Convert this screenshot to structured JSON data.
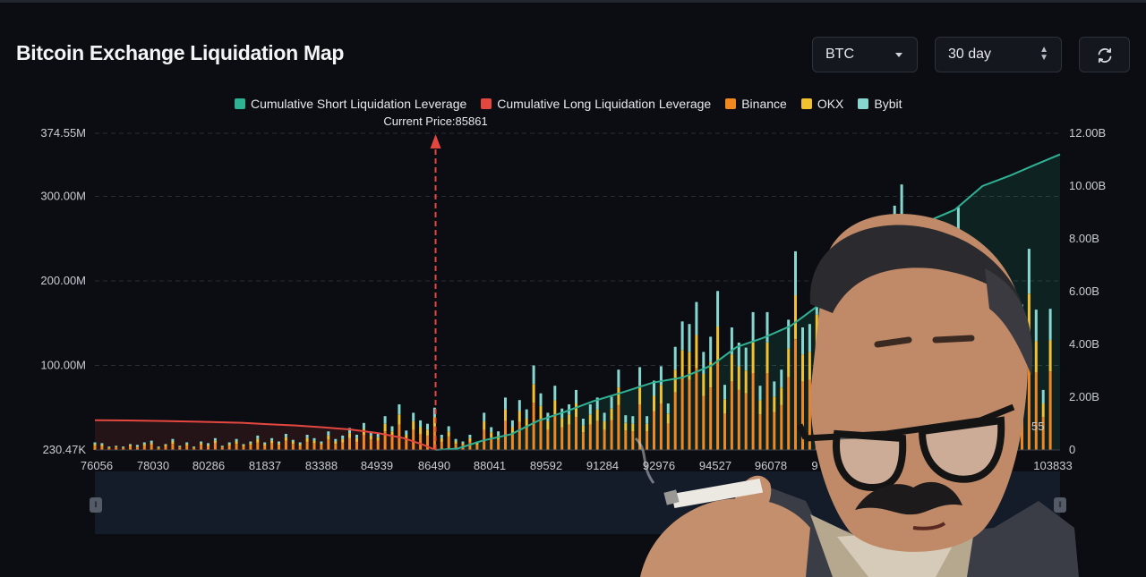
{
  "header": {
    "title": "Bitcoin Exchange Liquidation Map",
    "asset_select": "BTC",
    "range_select": "30 day"
  },
  "colors": {
    "short_cumulative": "#2fb194",
    "long_cumulative": "#e4473f",
    "binance": "#f0871f",
    "okx": "#f2c12e",
    "bybit": "#86d7cf",
    "background": "#0b0d12"
  },
  "chart_data": {
    "type": "bar",
    "title": "",
    "xlabel": "",
    "ylabel": "",
    "legend": [
      "Cumulative Short Liquidation Leverage",
      "Cumulative Long Liquidation Leverage",
      "Binance",
      "OKX",
      "Bybit"
    ],
    "legend_position": "top-center",
    "x_range": [
      76056,
      103833
    ],
    "x_ticks": [
      "76056",
      "78030",
      "80286",
      "81837",
      "83388",
      "84939",
      "86490",
      "88041",
      "89592",
      "91284",
      "92976",
      "94527",
      "96078",
      "9",
      "103833"
    ],
    "y_left_ticks": [
      "230.47K",
      "100.00M",
      "200.00M",
      "300.00M",
      "374.55M"
    ],
    "y_left_range": [
      0,
      374.55
    ],
    "y_left_unit": "M",
    "y_right_ticks": [
      "0",
      "2.00B",
      "4.00B",
      "6.00B",
      "8.00B",
      "10.00B",
      "12.00B"
    ],
    "y_right_range": [
      0,
      12
    ],
    "y_right_unit": "B",
    "current_price_label": "Current Price:85861",
    "current_price": 85861,
    "side_text": "55",
    "bar_categories": [
      76056,
      76259,
      76463,
      76667,
      76870,
      77074,
      77278,
      77481,
      77685,
      77889,
      78092,
      78296,
      78500,
      78703,
      78907,
      79111,
      79315,
      79518,
      79722,
      79926,
      80129,
      80333,
      80537,
      80740,
      80944,
      81148,
      81351,
      81555,
      81759,
      81962,
      82166,
      82370,
      82573,
      82777,
      82981,
      83185,
      83388,
      83592,
      83796,
      83999,
      84203,
      84407,
      84610,
      84814,
      85018,
      85221,
      85425,
      85629,
      85832,
      86036,
      86240,
      86443,
      86647,
      86851,
      87055,
      87258,
      87462,
      87666,
      87869,
      88073,
      88277,
      88480,
      88684,
      88888,
      89091,
      89295,
      89499,
      89702,
      89906,
      90110,
      90313,
      90517,
      90721,
      90925,
      91128,
      91332,
      91536,
      91739,
      91943,
      92147,
      92350,
      92554,
      92758,
      92961,
      93165,
      93369,
      93572,
      93776,
      93980,
      94183,
      94387,
      94591,
      94795,
      94998,
      95202,
      95406,
      95609,
      95813,
      96017,
      96220,
      96424,
      96628,
      96831,
      97035,
      97239,
      97442,
      97646,
      97850,
      98053,
      98257,
      98461,
      98665,
      98868,
      99072,
      99276,
      99479,
      99683,
      99887,
      100090,
      100294,
      100498,
      100701,
      100905,
      101109,
      101312,
      101516,
      101720,
      101923,
      102127,
      102331,
      102535,
      102738,
      102942,
      103146,
      103349,
      103553
    ],
    "series_binance": [
      5,
      4,
      2,
      3,
      2,
      4,
      3,
      5,
      6,
      2,
      4,
      7,
      3,
      5,
      2,
      6,
      4,
      8,
      3,
      5,
      7,
      4,
      6,
      9,
      5,
      8,
      6,
      11,
      7,
      5,
      10,
      8,
      6,
      12,
      7,
      9,
      14,
      10,
      18,
      12,
      11,
      22,
      16,
      30,
      13,
      24,
      19,
      17,
      28,
      10,
      16,
      7,
      6,
      10,
      6,
      24,
      15,
      12,
      34,
      19,
      33,
      26,
      56,
      37,
      24,
      42,
      27,
      30,
      39,
      21,
      30,
      34,
      24,
      35,
      53,
      23,
      22,
      54,
      22,
      46,
      55,
      31,
      68,
      84,
      83,
      97,
      64,
      74,
      104,
      43,
      81,
      71,
      67,
      91,
      42,
      91,
      45,
      53,
      86,
      131,
      81,
      83,
      114,
      48,
      119,
      30,
      44,
      89,
      130,
      84,
      59,
      62,
      54,
      161,
      174,
      123,
      58,
      86,
      74,
      94,
      53,
      34,
      159,
      64,
      53,
      107,
      48,
      72,
      51,
      70,
      53,
      96,
      132,
      92,
      39,
      93
    ],
    "series_okx": [
      2,
      2,
      1,
      1,
      1,
      2,
      1,
      2,
      2,
      1,
      2,
      3,
      1,
      2,
      1,
      2,
      2,
      3,
      1,
      2,
      3,
      2,
      2,
      4,
      2,
      3,
      2,
      4,
      3,
      2,
      4,
      3,
      2,
      5,
      3,
      4,
      6,
      4,
      7,
      5,
      4,
      9,
      6,
      12,
      5,
      10,
      8,
      7,
      11,
      4,
      6,
      3,
      2,
      4,
      2,
      10,
      6,
      5,
      14,
      8,
      13,
      11,
      22,
      15,
      10,
      17,
      11,
      12,
      16,
      8,
      12,
      14,
      10,
      14,
      21,
      9,
      9,
      22,
      9,
      18,
      22,
      12,
      27,
      34,
      33,
      39,
      26,
      30,
      42,
      17,
      32,
      28,
      27,
      36,
      17,
      36,
      18,
      21,
      34,
      52,
      32,
      33,
      46,
      19,
      48,
      12,
      18,
      36,
      52,
      34,
      24,
      25,
      22,
      64,
      70,
      49,
      23,
      34,
      30,
      38,
      21,
      14,
      64,
      26,
      21,
      43,
      19,
      29,
      20,
      28,
      21,
      38,
      53,
      37,
      16,
      37
    ],
    "series_bybit": [
      2,
      2,
      1,
      1,
      1,
      1,
      2,
      2,
      3,
      1,
      1,
      3,
      1,
      2,
      1,
      2,
      2,
      3,
      1,
      2,
      3,
      1,
      2,
      4,
      2,
      3,
      2,
      4,
      2,
      2,
      4,
      3,
      2,
      5,
      3,
      4,
      6,
      4,
      7,
      5,
      4,
      9,
      6,
      12,
      5,
      10,
      8,
      7,
      11,
      4,
      6,
      3,
      2,
      4,
      2,
      10,
      6,
      5,
      14,
      8,
      13,
      11,
      22,
      15,
      10,
      17,
      11,
      12,
      16,
      8,
      12,
      14,
      10,
      14,
      21,
      9,
      9,
      22,
      9,
      18,
      22,
      12,
      27,
      34,
      33,
      39,
      26,
      30,
      42,
      17,
      32,
      28,
      27,
      36,
      17,
      36,
      18,
      21,
      34,
      52,
      32,
      33,
      46,
      19,
      48,
      12,
      18,
      36,
      52,
      34,
      24,
      25,
      22,
      64,
      70,
      49,
      23,
      34,
      30,
      38,
      21,
      14,
      64,
      26,
      21,
      43,
      19,
      29,
      20,
      28,
      21,
      38,
      53,
      37,
      16,
      37
    ],
    "line_short": {
      "name": "Cumulative Short Liquidation Leverage",
      "x": [
        85861,
        86490,
        87200,
        88041,
        88800,
        89592,
        90400,
        91284,
        92100,
        92976,
        93800,
        94527,
        95300,
        96078,
        96900,
        97600,
        98400,
        99200,
        100000,
        100800,
        101600,
        102400,
        103100,
        103833
      ],
      "y": [
        0,
        0.05,
        0.35,
        0.6,
        1.1,
        1.45,
        1.85,
        2.2,
        2.55,
        2.75,
        3.2,
        3.9,
        4.25,
        4.7,
        5.5,
        6.25,
        7.5,
        8.3,
        8.65,
        9.1,
        10.0,
        10.4,
        10.8,
        11.2
      ]
    },
    "line_long": {
      "name": "Cumulative Long Liquidation Leverage",
      "x": [
        76056,
        77000,
        78030,
        79000,
        80286,
        81000,
        81837,
        82600,
        83388,
        84200,
        84939,
        85500,
        85861
      ],
      "y": [
        1.13,
        1.12,
        1.1,
        1.07,
        1.03,
        0.98,
        0.93,
        0.86,
        0.78,
        0.64,
        0.45,
        0.2,
        0
      ]
    }
  }
}
